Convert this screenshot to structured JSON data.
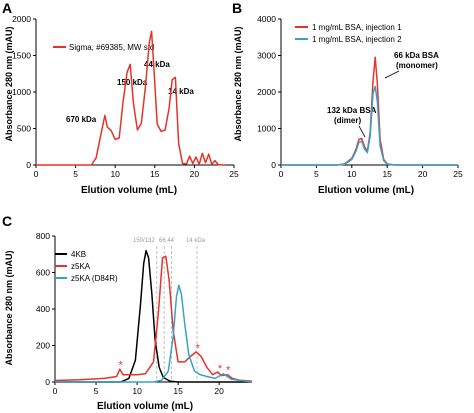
{
  "colors": {
    "red": "#e63329",
    "blue": "#3aa0c8",
    "black": "#000000",
    "gray": "#9a9a9a"
  },
  "chart_data": [
    {
      "panel": "A",
      "type": "line",
      "xlabel": "Elution volume (mL)",
      "ylabel": "Absorbance 280 nm (mAU)",
      "xlim": [
        0,
        25
      ],
      "ylim": [
        0,
        2000
      ],
      "xticks": [
        0,
        5,
        10,
        15,
        20,
        25
      ],
      "yticks": [
        0,
        500,
        1000,
        1500,
        2000
      ],
      "grid": false,
      "legend_position": "top-left",
      "series": [
        {
          "name": "Sigma, #69385, MW std",
          "color": "#e63329",
          "x": [
            0,
            7.0,
            7.6,
            8.2,
            8.7,
            9.0,
            9.5,
            10.0,
            10.5,
            11.0,
            11.5,
            11.9,
            12.3,
            12.8,
            13.3,
            13.8,
            14.3,
            14.6,
            14.9,
            15.3,
            15.8,
            16.3,
            16.8,
            17.2,
            17.6,
            18.0,
            18.5,
            19.0,
            19.4,
            19.8,
            20.2,
            20.6,
            21.0,
            21.4,
            21.8,
            22.2,
            22.6,
            23.0,
            23.5,
            24.0
          ],
          "y": [
            0,
            0,
            100,
            420,
            680,
            520,
            470,
            350,
            370,
            870,
            1270,
            1380,
            850,
            480,
            570,
            1050,
            1680,
            1830,
            1300,
            560,
            460,
            480,
            780,
            1170,
            1200,
            300,
            20,
            15,
            120,
            20,
            110,
            10,
            160,
            30,
            150,
            10,
            60,
            5,
            0,
            0
          ]
        }
      ],
      "annotations": [
        "670 kDa",
        "150 kDa",
        "44 kDa",
        "14 kDa"
      ]
    },
    {
      "panel": "B",
      "type": "line",
      "xlabel": "Elution volume (mL)",
      "ylabel": "Absorbance 280 nm (mAU)",
      "xlim": [
        0,
        25
      ],
      "ylim": [
        0,
        4000
      ],
      "xticks": [
        0,
        5,
        10,
        15,
        20,
        25
      ],
      "yticks": [
        0,
        1000,
        2000,
        3000,
        4000
      ],
      "grid": false,
      "legend_position": "top-left",
      "series": [
        {
          "name": "1 mg/mL BSA, injection 1",
          "color": "#e63329",
          "x": [
            0,
            8.0,
            9.0,
            10.0,
            10.6,
            11.0,
            11.4,
            11.8,
            12.2,
            12.6,
            13.0,
            13.3,
            13.6,
            14.0,
            14.5,
            15.0,
            16.0,
            25
          ],
          "y": [
            0,
            0,
            30,
            180,
            430,
            700,
            730,
            500,
            380,
            900,
            2300,
            2950,
            2250,
            700,
            150,
            30,
            0,
            0
          ]
        },
        {
          "name": "1 mg/mL BSA, injection 2",
          "color": "#3aa0c8",
          "x": [
            0,
            8.0,
            9.0,
            10.0,
            10.6,
            11.0,
            11.4,
            11.8,
            12.2,
            12.6,
            13.0,
            13.3,
            13.6,
            14.0,
            14.5,
            15.0,
            16.0,
            25
          ],
          "y": [
            0,
            0,
            20,
            150,
            380,
            620,
            650,
            440,
            340,
            800,
            1950,
            2150,
            1750,
            520,
            120,
            20,
            0,
            0
          ]
        }
      ],
      "annotations": [
        "66 kDa BSA",
        "(monomer)",
        "132 kDa BSA",
        "(dimer)"
      ]
    },
    {
      "panel": "C",
      "type": "line",
      "xlabel": "Elution volume (mL)",
      "ylabel": "Absorbance 280 nm (mAU)",
      "xlim": [
        0,
        24
      ],
      "ylim": [
        0,
        800
      ],
      "xticks": [
        0,
        5,
        10,
        15,
        20
      ],
      "yticks": [
        0,
        200,
        400,
        600,
        800
      ],
      "grid": false,
      "legend_position": "top-left",
      "series": [
        {
          "name": "4KB",
          "color": "#000000",
          "x": [
            0,
            8.0,
            9.0,
            9.8,
            10.4,
            10.8,
            11.1,
            11.4,
            11.8,
            12.2,
            12.7,
            13.2,
            14.0,
            15.0,
            24
          ],
          "y": [
            0,
            0,
            20,
            120,
            420,
            650,
            720,
            680,
            480,
            230,
            80,
            25,
            5,
            0,
            0
          ]
        },
        {
          "name": "z5KA",
          "color": "#e63329",
          "x": [
            0,
            3,
            6,
            7.5,
            7.9,
            8.3,
            9.0,
            10.0,
            11.0,
            12.0,
            12.6,
            13.1,
            13.5,
            13.9,
            14.4,
            15.0,
            15.8,
            16.5,
            17.2,
            17.8,
            18.5,
            19.2,
            19.8,
            20.3,
            21.0,
            21.6,
            22.5,
            24
          ],
          "y": [
            8,
            12,
            20,
            30,
            70,
            40,
            40,
            40,
            45,
            110,
            380,
            680,
            690,
            560,
            280,
            110,
            110,
            140,
            165,
            140,
            80,
            40,
            55,
            35,
            40,
            20,
            10,
            5
          ]
        },
        {
          "name": "z5KA (D84R)",
          "color": "#3aa0c8",
          "x": [
            0,
            12.0,
            13.0,
            13.8,
            14.4,
            14.8,
            15.1,
            15.4,
            15.8,
            16.3,
            17.0,
            17.7,
            18.5,
            19.5,
            20.5,
            21.5,
            24
          ],
          "y": [
            0,
            0,
            10,
            60,
            250,
            470,
            530,
            480,
            320,
            150,
            60,
            40,
            30,
            20,
            45,
            15,
            0
          ]
        }
      ],
      "reference_lines": {
        "x": [
          12.4,
          13.3,
          14.2,
          17.3
        ]
      },
      "reference_labels": [
        "150/132",
        "66 44",
        "14 kDa"
      ],
      "markers": {
        "symbol": "*",
        "x": [
          8.0,
          17.4,
          20.1,
          21.1
        ]
      }
    }
  ],
  "panel_labels": [
    "A",
    "B",
    "C"
  ]
}
